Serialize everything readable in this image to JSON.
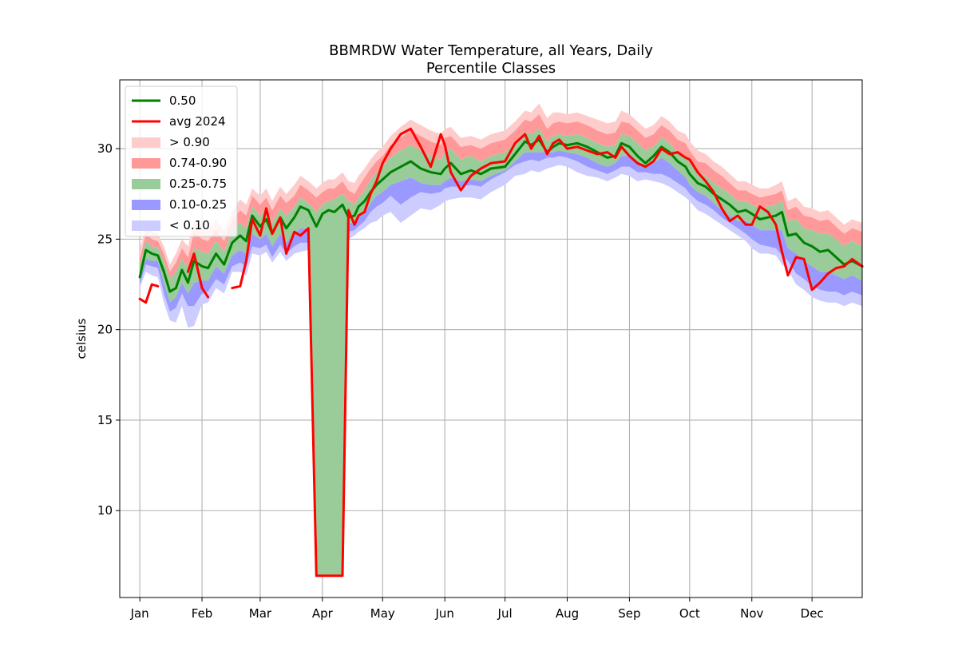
{
  "chart_data": {
    "type": "area",
    "title": "BBMRDW Water Temperature, all Years, Daily",
    "subtitle": "Percentile Classes",
    "xlabel": "",
    "ylabel": "celsius",
    "xlim": [
      -10,
      360
    ],
    "ylim": [
      5.2,
      33.8
    ],
    "grid": true,
    "legend_position": "top-left",
    "x_ticks": [
      {
        "label": "Jan",
        "day": 0
      },
      {
        "label": "Feb",
        "day": 31
      },
      {
        "label": "Mar",
        "day": 60
      },
      {
        "label": "Apr",
        "day": 91
      },
      {
        "label": "May",
        "day": 121
      },
      {
        "label": "Jun",
        "day": 152
      },
      {
        "label": "Jul",
        "day": 182
      },
      {
        "label": "Aug",
        "day": 213
      },
      {
        "label": "Sep",
        "day": 244
      },
      {
        "label": "Oct",
        "day": 274
      },
      {
        "label": "Nov",
        "day": 305
      },
      {
        "label": "Dec",
        "day": 335
      }
    ],
    "y_ticks": [
      10,
      15,
      20,
      25,
      30
    ],
    "legend": [
      {
        "label": "0.50",
        "kind": "line",
        "color": "#008000"
      },
      {
        "label": "avg 2024",
        "kind": "line",
        "color": "#ff0000"
      },
      {
        "label": "> 0.90",
        "kind": "patch",
        "color": "#ffcccc"
      },
      {
        "label": "0.74-0.90",
        "kind": "patch",
        "color": "#ff9999"
      },
      {
        "label": "0.25-0.75",
        "kind": "patch",
        "color": "#99cc99"
      },
      {
        "label": "0.10-0.25",
        "kind": "patch",
        "color": "#9999ff"
      },
      {
        "label": "< 0.10",
        "kind": "patch",
        "color": "#ccccff"
      }
    ],
    "day": [
      0,
      3,
      6,
      9,
      12,
      15,
      18,
      21,
      24,
      27,
      31,
      34,
      38,
      42,
      46,
      50,
      53,
      56,
      60,
      63,
      66,
      70,
      73,
      77,
      80,
      84,
      88,
      91,
      94,
      97,
      101,
      104,
      107,
      109,
      112,
      115,
      118,
      121,
      125,
      130,
      135,
      140,
      145,
      150,
      152,
      155,
      160,
      165,
      170,
      175,
      182,
      187,
      192,
      195,
      199,
      203,
      206,
      209,
      213,
      218,
      223,
      228,
      233,
      237,
      240,
      244,
      248,
      252,
      256,
      260,
      264,
      268,
      272,
      274,
      278,
      282,
      286,
      290,
      294,
      298,
      302,
      305,
      309,
      313,
      317,
      320,
      323,
      327,
      331,
      335,
      339,
      343,
      347,
      351,
      355,
      360
    ],
    "series": [
      {
        "name": "0.50",
        "color": "#008000",
        "values": [
          22.9,
          24.4,
          24.2,
          24.1,
          23.2,
          22.1,
          22.3,
          23.3,
          22.6,
          23.8,
          23.5,
          23.4,
          24.2,
          23.6,
          24.8,
          25.2,
          24.9,
          26.3,
          25.7,
          26.1,
          25.3,
          26.2,
          25.6,
          26.2,
          26.8,
          26.6,
          25.7,
          26.4,
          26.6,
          26.5,
          26.9,
          26.2,
          26.3,
          26.8,
          27.1,
          27.6,
          28.0,
          28.3,
          28.7,
          29.0,
          29.3,
          28.9,
          28.7,
          28.6,
          28.9,
          29.2,
          28.6,
          28.8,
          28.6,
          28.9,
          29.0,
          29.7,
          30.4,
          30.2,
          30.5,
          29.8,
          30.1,
          30.3,
          30.2,
          30.3,
          30.1,
          29.8,
          29.5,
          29.6,
          30.3,
          30.1,
          29.6,
          29.2,
          29.6,
          30.1,
          29.8,
          29.3,
          29.0,
          28.6,
          28.1,
          27.9,
          27.5,
          27.2,
          26.9,
          26.5,
          26.6,
          26.4,
          26.1,
          26.2,
          26.3,
          26.5,
          25.2,
          25.3,
          24.8,
          24.6,
          24.3,
          24.4,
          24.0,
          23.6,
          23.8,
          23.5
        ]
      },
      {
        "name": "avg 2024",
        "color": "#ff0000",
        "values": [
          21.7,
          21.5,
          22.5,
          22.4,
          null,
          null,
          null,
          null,
          23.2,
          24.2,
          22.3,
          21.8,
          null,
          null,
          22.3,
          22.4,
          23.8,
          26.1,
          25.2,
          26.7,
          25.3,
          26.2,
          24.2,
          25.4,
          25.2,
          25.6,
          6.4,
          6.4,
          6.4,
          6.4,
          6.4,
          26.6,
          25.8,
          26.3,
          26.5,
          27.5,
          28.2,
          29.2,
          30.0,
          30.8,
          31.1,
          30.1,
          29.0,
          30.8,
          30.2,
          28.7,
          27.7,
          28.5,
          28.9,
          29.2,
          29.3,
          30.3,
          30.8,
          30.0,
          30.7,
          29.7,
          30.3,
          30.5,
          30.0,
          30.1,
          29.9,
          29.7,
          29.8,
          29.5,
          30.1,
          29.6,
          29.2,
          29.0,
          29.3,
          30.0,
          29.7,
          29.8,
          29.5,
          29.4,
          28.7,
          28.2,
          27.6,
          26.7,
          26.0,
          26.3,
          25.8,
          25.8,
          26.8,
          26.5,
          25.8,
          24.3,
          23.0,
          24.0,
          23.9,
          22.2,
          22.6,
          23.1,
          23.4,
          23.5,
          23.9,
          23.5
        ]
      },
      {
        "name": "p05",
        "values": [
          22.3,
          23.2,
          23.0,
          22.9,
          21.5,
          20.5,
          20.4,
          21.3,
          20.1,
          20.2,
          21.4,
          21.5,
          22.3,
          22.0,
          23.2,
          23.2,
          23.0,
          24.2,
          24.1,
          24.3,
          23.7,
          24.3,
          23.8,
          24.2,
          24.3,
          24.4,
          6.4,
          6.4,
          6.4,
          6.4,
          6.4,
          25.0,
          25.2,
          25.4,
          25.6,
          25.9,
          26.0,
          26.3,
          26.5,
          25.9,
          26.3,
          26.7,
          26.6,
          26.9,
          27.1,
          27.2,
          27.3,
          27.3,
          27.2,
          27.6,
          28.0,
          28.5,
          28.6,
          28.8,
          28.7,
          28.9,
          29.0,
          29.1,
          29.0,
          28.7,
          28.5,
          28.4,
          28.2,
          28.4,
          28.6,
          28.5,
          28.2,
          28.3,
          28.2,
          28.1,
          27.9,
          27.6,
          27.3,
          27.1,
          26.6,
          26.4,
          26.1,
          25.8,
          25.5,
          25.2,
          24.9,
          24.5,
          24.2,
          24.2,
          24.1,
          23.6,
          23.3,
          22.5,
          22.2,
          21.8,
          21.6,
          21.5,
          21.5,
          21.3,
          21.5,
          21.3
        ]
      },
      {
        "name": "p10",
        "values": [
          22.5,
          23.6,
          23.5,
          23.4,
          22.0,
          21.0,
          21.2,
          22.0,
          21.3,
          21.3,
          22.0,
          22.1,
          22.8,
          22.5,
          23.5,
          23.7,
          23.5,
          24.6,
          24.5,
          24.7,
          24.0,
          24.7,
          24.2,
          24.6,
          24.8,
          24.8,
          6.4,
          6.4,
          6.4,
          6.4,
          6.4,
          25.4,
          25.5,
          25.7,
          26.0,
          26.5,
          26.8,
          27.0,
          27.4,
          26.9,
          27.3,
          27.6,
          27.5,
          27.6,
          27.8,
          27.9,
          27.9,
          28.0,
          27.9,
          28.3,
          28.7,
          29.1,
          29.3,
          29.4,
          29.3,
          29.5,
          29.5,
          29.6,
          29.5,
          29.3,
          29.0,
          28.8,
          28.6,
          28.8,
          29.0,
          29.0,
          28.7,
          28.7,
          28.6,
          28.6,
          28.4,
          28.1,
          27.8,
          27.5,
          27.1,
          26.9,
          26.6,
          26.2,
          25.9,
          25.6,
          25.3,
          25.0,
          24.7,
          24.6,
          24.5,
          24.1,
          23.8,
          23.1,
          22.8,
          22.4,
          22.2,
          22.1,
          22.1,
          21.9,
          22.1,
          21.9
        ]
      },
      {
        "name": "p25",
        "values": [
          22.7,
          23.9,
          23.8,
          23.8,
          22.6,
          21.5,
          21.8,
          22.6,
          22.0,
          22.6,
          22.7,
          22.7,
          23.5,
          23.1,
          24.1,
          24.4,
          24.2,
          25.3,
          25.0,
          25.3,
          24.6,
          25.3,
          24.8,
          25.3,
          25.6,
          25.6,
          6.4,
          6.4,
          6.4,
          6.4,
          6.4,
          25.8,
          26.0,
          26.2,
          26.4,
          27.0,
          27.4,
          27.6,
          28.0,
          28.2,
          28.4,
          28.1,
          28.0,
          28.0,
          28.2,
          28.4,
          28.2,
          28.3,
          28.2,
          28.5,
          28.8,
          29.3,
          29.8,
          29.8,
          29.8,
          29.8,
          29.8,
          29.9,
          29.8,
          29.7,
          29.5,
          29.2,
          29.0,
          29.2,
          29.6,
          29.6,
          29.2,
          29.0,
          29.2,
          29.5,
          29.2,
          28.8,
          28.4,
          28.0,
          27.6,
          27.4,
          27.0,
          26.6,
          26.3,
          26.0,
          26.0,
          25.8,
          25.5,
          25.5,
          25.5,
          25.5,
          24.5,
          24.2,
          23.8,
          23.5,
          23.2,
          23.2,
          23.0,
          22.8,
          23.0,
          22.7
        ]
      },
      {
        "name": "p75",
        "values": [
          23.5,
          24.9,
          24.6,
          24.5,
          23.8,
          22.8,
          23.2,
          23.9,
          23.4,
          24.5,
          24.3,
          24.2,
          24.9,
          24.3,
          25.5,
          25.9,
          25.6,
          26.8,
          26.3,
          26.7,
          25.9,
          26.7,
          26.3,
          26.8,
          27.3,
          27.0,
          26.5,
          26.9,
          27.1,
          27.2,
          27.5,
          27.1,
          26.9,
          27.3,
          27.7,
          28.3,
          28.7,
          29.0,
          29.5,
          29.9,
          30.2,
          29.9,
          29.6,
          29.4,
          29.8,
          30.0,
          29.4,
          29.6,
          29.3,
          29.6,
          29.8,
          30.3,
          30.9,
          30.8,
          31.1,
          30.4,
          30.7,
          30.8,
          30.7,
          30.8,
          30.6,
          30.3,
          30.1,
          30.2,
          30.8,
          30.7,
          30.3,
          29.9,
          30.1,
          30.6,
          30.3,
          29.8,
          29.6,
          29.2,
          28.7,
          28.5,
          28.1,
          27.8,
          27.5,
          27.1,
          27.1,
          26.9,
          26.7,
          26.8,
          26.9,
          27.1,
          26.0,
          26.1,
          25.6,
          25.5,
          25.3,
          25.3,
          25.0,
          24.6,
          24.9,
          24.6
        ]
      },
      {
        "name": "p90",
        "values": [
          23.9,
          25.3,
          25.0,
          24.9,
          24.2,
          23.2,
          23.7,
          24.5,
          24.0,
          25.4,
          25.0,
          24.9,
          25.5,
          24.9,
          26.0,
          26.6,
          26.3,
          27.4,
          26.9,
          27.3,
          26.6,
          27.4,
          27.0,
          27.4,
          28.0,
          27.7,
          27.3,
          27.6,
          27.8,
          27.8,
          28.2,
          27.7,
          27.5,
          27.9,
          28.4,
          28.9,
          29.3,
          29.6,
          30.2,
          30.6,
          31.0,
          30.7,
          30.4,
          30.2,
          30.6,
          30.7,
          30.1,
          30.2,
          30.0,
          30.3,
          30.5,
          31.0,
          31.6,
          31.5,
          31.9,
          31.1,
          31.4,
          31.5,
          31.4,
          31.5,
          31.3,
          31.0,
          30.8,
          30.9,
          31.5,
          31.4,
          31.0,
          30.6,
          30.8,
          31.3,
          31.0,
          30.5,
          30.3,
          29.9,
          29.3,
          29.2,
          28.8,
          28.5,
          28.1,
          27.7,
          27.7,
          27.5,
          27.3,
          27.4,
          27.5,
          27.7,
          26.6,
          26.8,
          26.3,
          26.2,
          26.0,
          26.1,
          25.7,
          25.3,
          25.6,
          25.4
        ]
      },
      {
        "name": "p95",
        "values": [
          24.4,
          25.7,
          25.4,
          25.3,
          24.6,
          23.6,
          24.2,
          25.0,
          24.6,
          26.0,
          25.6,
          25.5,
          26.1,
          25.5,
          26.5,
          27.2,
          26.9,
          27.8,
          27.4,
          27.8,
          27.1,
          27.9,
          27.5,
          28.0,
          28.5,
          28.2,
          27.8,
          28.1,
          28.3,
          28.3,
          28.7,
          28.2,
          28.1,
          28.5,
          28.9,
          29.4,
          29.8,
          30.1,
          30.7,
          31.2,
          31.6,
          31.3,
          31.0,
          30.8,
          31.1,
          31.2,
          30.6,
          30.7,
          30.5,
          30.8,
          31.0,
          31.5,
          32.1,
          32.0,
          32.5,
          31.7,
          32.0,
          32.0,
          31.9,
          32.0,
          31.8,
          31.6,
          31.4,
          31.5,
          32.1,
          31.9,
          31.5,
          31.1,
          31.3,
          31.8,
          31.5,
          31.0,
          30.8,
          30.4,
          29.9,
          29.7,
          29.3,
          29.0,
          28.6,
          28.2,
          28.2,
          28.0,
          27.8,
          27.8,
          28.0,
          28.2,
          27.1,
          27.3,
          26.8,
          26.7,
          26.5,
          26.6,
          26.2,
          25.8,
          26.1,
          25.9
        ]
      }
    ]
  }
}
